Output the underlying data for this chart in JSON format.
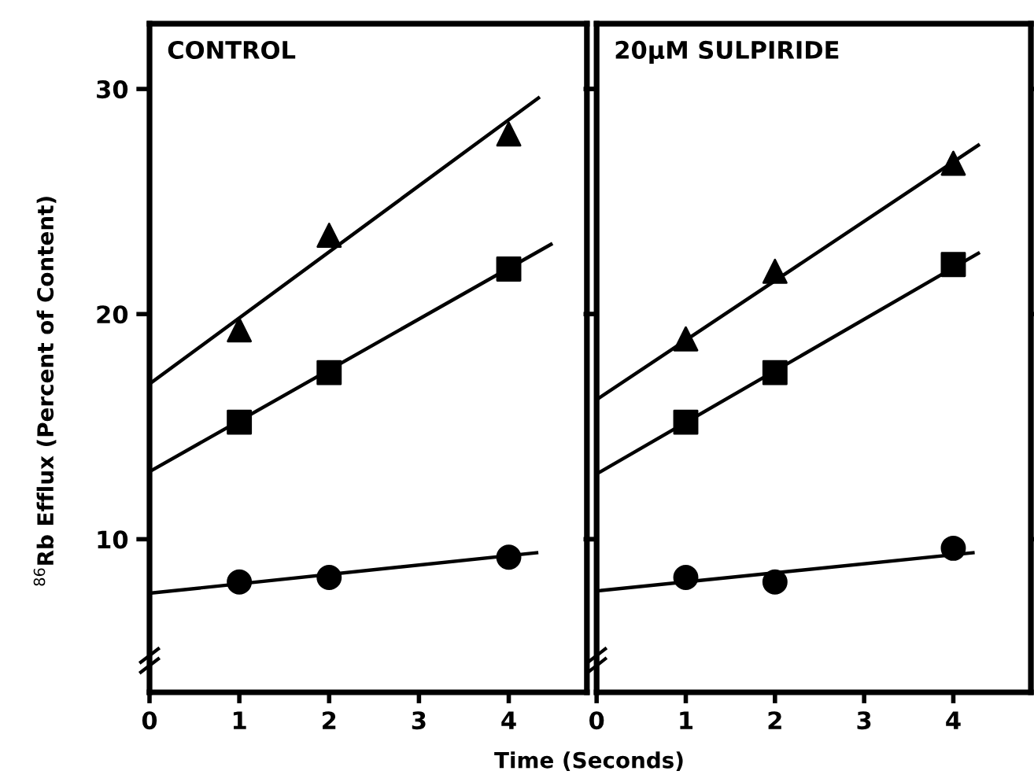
{
  "chart_data": [
    {
      "type": "scatter",
      "title": "CONTROL",
      "ylabel": "$^{86}$Rb Efflux (Percent of Content)",
      "xlabel": "Time (Seconds)",
      "x": [
        1,
        2,
        4
      ],
      "xlim": [
        0,
        4.87
      ],
      "xticks": [
        0,
        1,
        2,
        3,
        4
      ],
      "ylim": [
        3.2,
        32.9
      ],
      "yticks": [
        10,
        20,
        30
      ],
      "grid": false,
      "legend": false,
      "series": [
        {
          "marker": "triangle",
          "color": "#000000",
          "values": [
            19.3,
            23.5,
            28.0
          ]
        },
        {
          "marker": "square",
          "color": "#000000",
          "values": [
            15.2,
            17.4,
            22.0
          ]
        },
        {
          "marker": "circle",
          "color": "#000000",
          "values": [
            8.1,
            8.3,
            9.2
          ]
        },
        {
          "type": "line",
          "marker": "none",
          "color": "#000000",
          "x": [
            0,
            4.33
          ],
          "values": [
            16.9,
            29.6
          ]
        },
        {
          "type": "line",
          "marker": "none",
          "color": "#000000",
          "x": [
            0,
            4.47
          ],
          "values": [
            13.0,
            23.1
          ]
        },
        {
          "type": "line",
          "marker": "none",
          "color": "#000000",
          "x": [
            0,
            4.31
          ],
          "values": [
            7.6,
            9.4
          ]
        }
      ]
    },
    {
      "type": "scatter",
      "title": "20µM SULPIRIDE",
      "x": [
        1,
        2,
        4
      ],
      "xlim": [
        0,
        4.87
      ],
      "xticks": [
        0,
        1,
        2,
        3,
        4
      ],
      "ylim": [
        3.2,
        32.9
      ],
      "yticks": [
        10,
        20,
        30
      ],
      "tick_labels": "x",
      "grid": false,
      "legend": false,
      "series": [
        {
          "marker": "triangle",
          "color": "#000000",
          "values": [
            18.9,
            21.9,
            26.7
          ]
        },
        {
          "marker": "square",
          "color": "#000000",
          "values": [
            15.2,
            17.4,
            22.2
          ]
        },
        {
          "marker": "circle",
          "color": "#000000",
          "values": [
            8.3,
            8.1,
            9.6
          ]
        },
        {
          "type": "line",
          "marker": "none",
          "color": "#000000",
          "x": [
            0,
            4.28
          ],
          "values": [
            16.2,
            27.5
          ]
        },
        {
          "type": "line",
          "marker": "none",
          "color": "#000000",
          "x": [
            0,
            4.28
          ],
          "values": [
            12.9,
            22.7
          ]
        },
        {
          "type": "line",
          "marker": "none",
          "color": "#000000",
          "x": [
            0,
            4.22
          ],
          "values": [
            7.7,
            9.4
          ]
        }
      ]
    }
  ]
}
